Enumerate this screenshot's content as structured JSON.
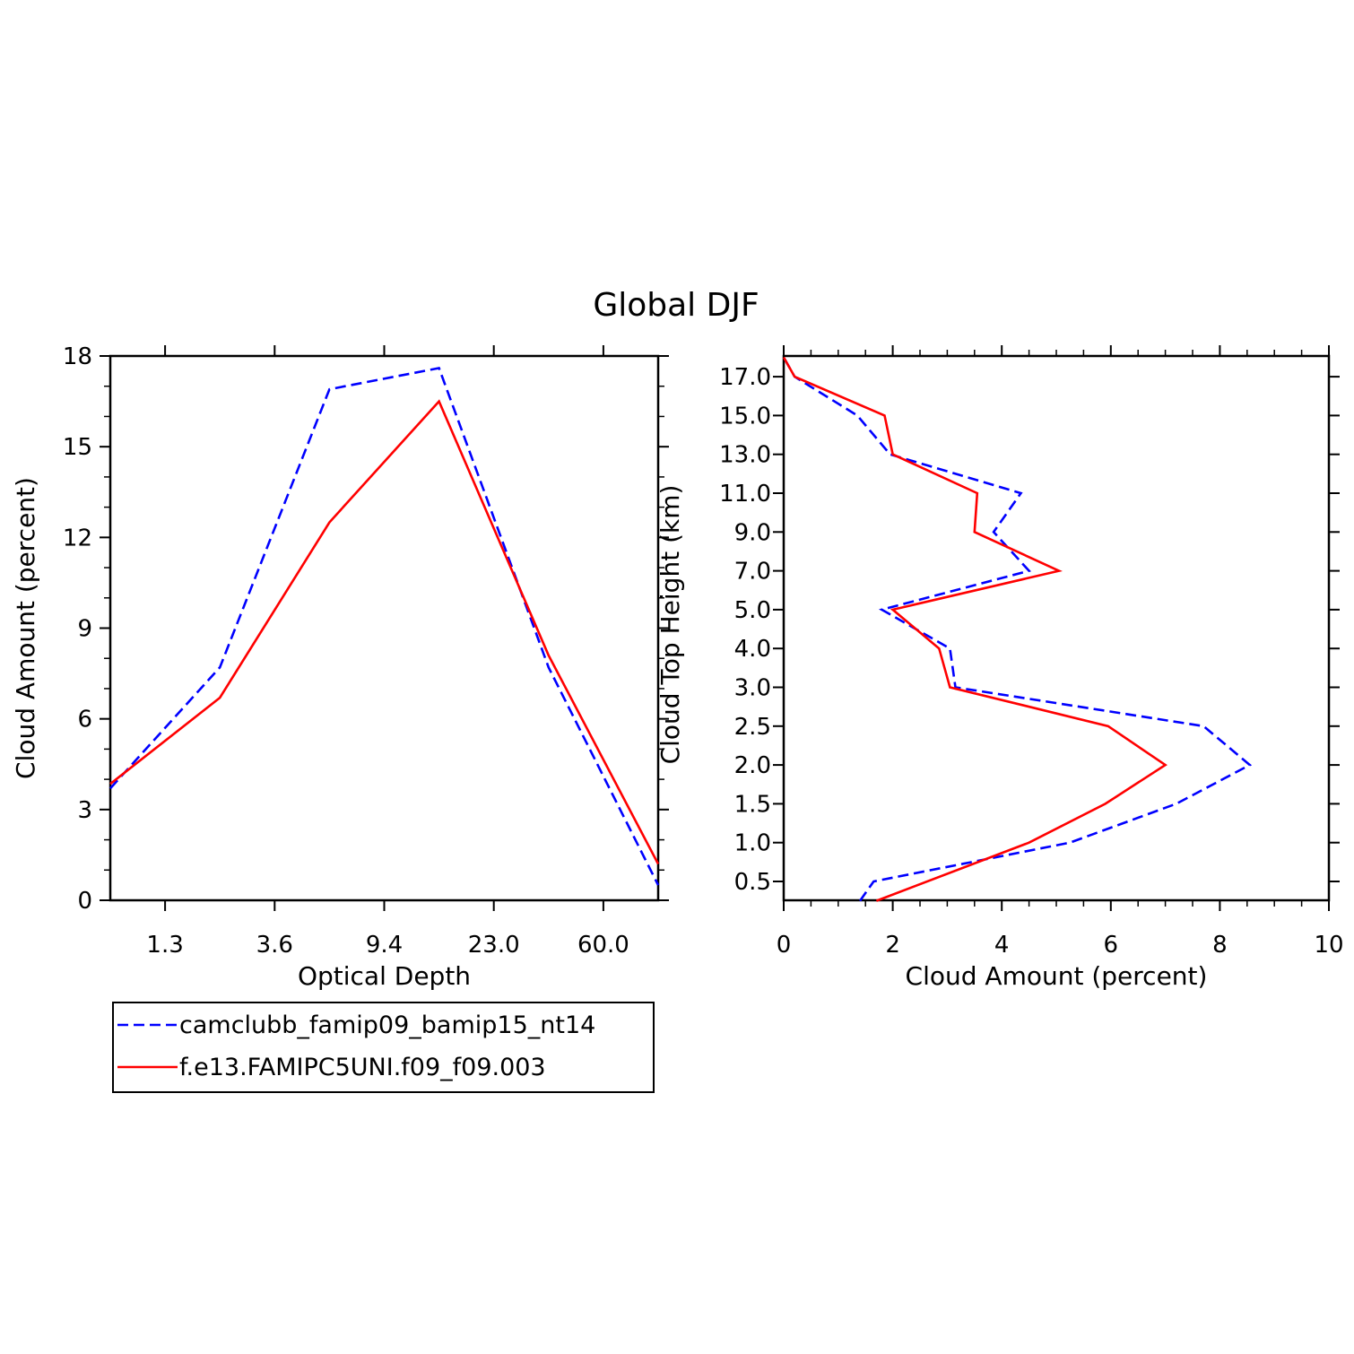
{
  "figure_title": "Global DJF",
  "legend": {
    "entries": [
      {
        "label": "camclubb_famip09_bamip15_nt14",
        "color": "#0000ff",
        "dash": "dashed"
      },
      {
        "label": "f.e13.FAMIPC5UNI.f09_f09.003",
        "color": "#ff0000",
        "dash": "solid"
      }
    ]
  },
  "chart_data": [
    {
      "type": "line",
      "xlabel": "Optical Depth",
      "ylabel": "Cloud Amount (percent)",
      "x_tick_labels": [
        "1.3",
        "3.6",
        "9.4",
        "23.0",
        "60.0"
      ],
      "y_tick_labels": [
        "0",
        "3",
        "6",
        "9",
        "12",
        "15",
        "18"
      ],
      "ylim": [
        0,
        18
      ],
      "x_categories": 5,
      "grid": false,
      "series": [
        {
          "name": "camclubb_famip09_bamip15_nt14",
          "color": "#0000ff",
          "dash": "dashed",
          "x_index": [
            -0.5,
            0.5,
            1.5,
            2.5,
            3.5,
            4.5
          ],
          "values": [
            3.7,
            7.7,
            16.9,
            17.6,
            7.7,
            0.5
          ]
        },
        {
          "name": "f.e13.FAMIPC5UNI.f09_f09.003",
          "color": "#ff0000",
          "dash": "solid",
          "x_index": [
            -0.5,
            0.5,
            1.5,
            2.5,
            3.5,
            4.5
          ],
          "values": [
            3.85,
            6.7,
            12.5,
            16.5,
            8.1,
            1.2
          ]
        }
      ]
    },
    {
      "type": "line",
      "xlabel": "Cloud Amount (percent)",
      "ylabel": "Cloud Top Height (km)",
      "x_tick_labels": [
        "0",
        "2",
        "4",
        "6",
        "8",
        "10"
      ],
      "y_tick_labels": [
        "0.5",
        "1.0",
        "1.5",
        "2.0",
        "2.5",
        "3.0",
        "4.0",
        "5.0",
        "7.0",
        "9.0",
        "11.0",
        "13.0",
        "15.0",
        "17.0"
      ],
      "xlim": [
        0,
        10
      ],
      "y_levels": 14,
      "grid": false,
      "series": [
        {
          "name": "camclubb_famip09_bamip15_nt14",
          "color": "#0000ff",
          "dash": "dashed",
          "x": [
            1.4,
            1.65,
            5.25,
            7.2,
            8.55,
            7.7,
            3.15,
            3.05,
            1.8,
            4.5,
            3.85,
            4.35,
            1.95,
            1.35,
            0.2,
            0.0
          ],
          "level_index": [
            -0.5,
            0.0,
            1.0,
            2.0,
            3.0,
            4.0,
            5.0,
            6.0,
            7.0,
            8.0,
            9.0,
            10.0,
            11.0,
            12.0,
            13.0,
            13.5
          ]
        },
        {
          "name": "f.e13.FAMIPC5UNI.f09_f09.003",
          "color": "#ff0000",
          "dash": "solid",
          "x": [
            1.7,
            4.5,
            5.9,
            7.0,
            5.95,
            3.05,
            2.85,
            2.0,
            5.05,
            3.5,
            3.55,
            2.0,
            1.85,
            0.2,
            0.0
          ],
          "level_index": [
            -0.5,
            1.0,
            2.0,
            3.0,
            4.0,
            5.0,
            6.0,
            7.0,
            8.0,
            9.0,
            10.0,
            11.0,
            12.0,
            13.0,
            13.5
          ]
        }
      ]
    }
  ]
}
